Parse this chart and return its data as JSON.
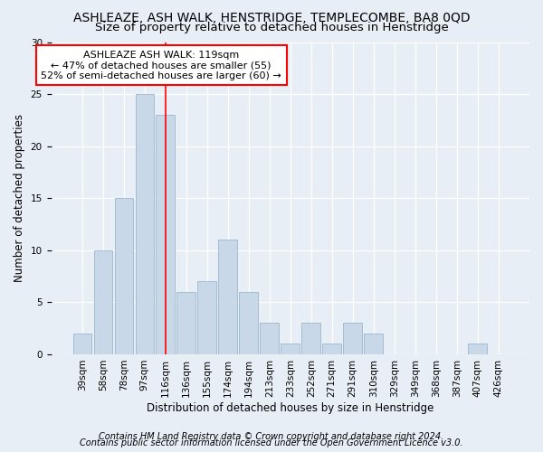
{
  "title": "ASHLEAZE, ASH WALK, HENSTRIDGE, TEMPLECOMBE, BA8 0QD",
  "subtitle": "Size of property relative to detached houses in Henstridge",
  "xlabel": "Distribution of detached houses by size in Henstridge",
  "ylabel": "Number of detached properties",
  "categories": [
    "39sqm",
    "58sqm",
    "78sqm",
    "97sqm",
    "116sqm",
    "136sqm",
    "155sqm",
    "174sqm",
    "194sqm",
    "213sqm",
    "233sqm",
    "252sqm",
    "271sqm",
    "291sqm",
    "310sqm",
    "329sqm",
    "349sqm",
    "368sqm",
    "387sqm",
    "407sqm",
    "426sqm"
  ],
  "values": [
    2,
    10,
    15,
    25,
    23,
    6,
    7,
    11,
    6,
    3,
    1,
    3,
    1,
    3,
    2,
    0,
    0,
    0,
    0,
    1,
    0
  ],
  "bar_color": "#c8d8e8",
  "bar_edge_color": "#9ab8cc",
  "vline_x": 4.5,
  "vline_color": "red",
  "annotation_title": "ASHLEAZE ASH WALK: 119sqm",
  "annotation_line1": "← 47% of detached houses are smaller (55)",
  "annotation_line2": "52% of semi-detached houses are larger (60) →",
  "annotation_box_color": "white",
  "annotation_box_edge": "red",
  "ylim": [
    0,
    30
  ],
  "yticks": [
    0,
    5,
    10,
    15,
    20,
    25,
    30
  ],
  "footer1": "Contains HM Land Registry data © Crown copyright and database right 2024.",
  "footer2": "Contains public sector information licensed under the Open Government Licence v3.0.",
  "background_color": "#e8eef5",
  "plot_background": "#e8eef5",
  "grid_color": "white",
  "title_fontsize": 10,
  "subtitle_fontsize": 9.5,
  "axis_label_fontsize": 8.5,
  "tick_fontsize": 7.5,
  "annotation_fontsize": 8,
  "footer_fontsize": 7
}
